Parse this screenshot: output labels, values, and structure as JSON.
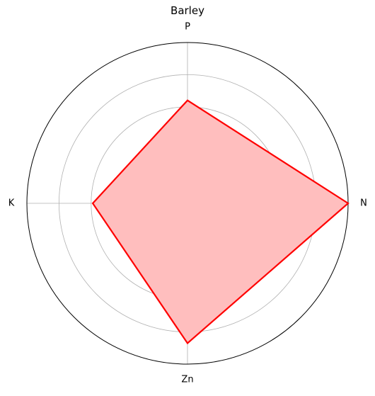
{
  "chart_data": {
    "type": "radar",
    "title": "Barley",
    "categories": [
      "N",
      "P",
      "K",
      "Zn"
    ],
    "rlim": [
      0,
      1
    ],
    "grid": true,
    "series": [
      {
        "values": [
          1.0,
          0.64,
          0.59,
          0.87
        ],
        "color": "#ff0000",
        "fill": "#ffbebe"
      }
    ]
  }
}
